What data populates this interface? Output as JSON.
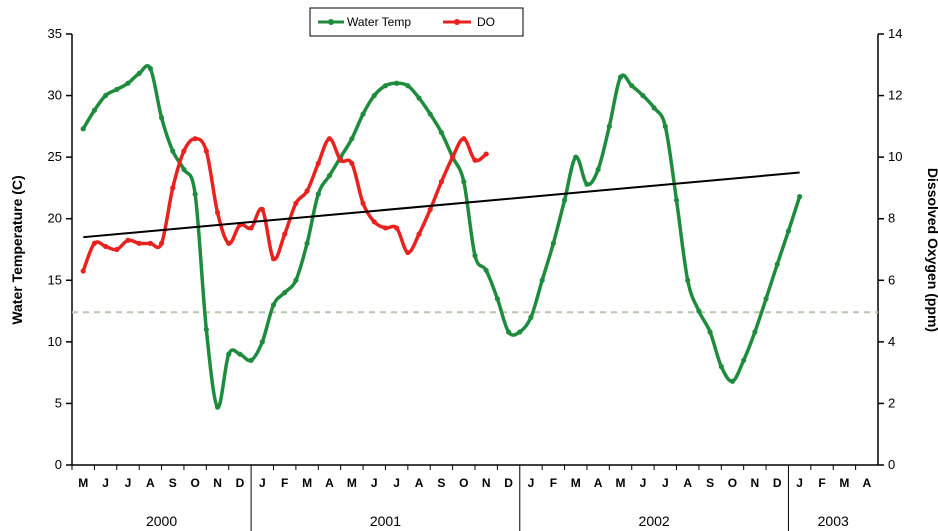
{
  "chart_data": {
    "type": "line",
    "xlabel_months": [
      "M",
      "J",
      "J",
      "A",
      "S",
      "O",
      "N",
      "D",
      "J",
      "F",
      "M",
      "A",
      "M",
      "J",
      "J",
      "A",
      "S",
      "O",
      "N",
      "D",
      "J",
      "F",
      "M",
      "A",
      "M",
      "J",
      "J",
      "A",
      "S",
      "O",
      "N",
      "D",
      "J",
      "F",
      "M",
      "A"
    ],
    "years": [
      "2000",
      "2001",
      "2002",
      "2003"
    ],
    "y_left_label": "Water Temperature (C)",
    "y_right_label": "Dissolved Oxygen (ppm)",
    "y_left_range": [
      0,
      35
    ],
    "y_right_range": [
      0,
      14
    ],
    "y_left_ticks": [
      "0",
      "5",
      "10",
      "15",
      "20",
      "25",
      "30",
      "35"
    ],
    "y_right_ticks": [
      "0",
      "2",
      "4",
      "6",
      "8",
      "10",
      "12",
      "14"
    ],
    "legend_position": "top-center",
    "series": [
      {
        "name": "Water Temp",
        "axis": "left",
        "color": "#1e8c3c",
        "points": [
          [
            0,
            27.3
          ],
          [
            0.5,
            28.8
          ],
          [
            1,
            30.0
          ],
          [
            1.5,
            30.5
          ],
          [
            2,
            31.0
          ],
          [
            2.5,
            31.8
          ],
          [
            3,
            32.2
          ],
          [
            3.5,
            28.2
          ],
          [
            4,
            25.5
          ],
          [
            4.5,
            24.0
          ],
          [
            5,
            22.0
          ],
          [
            5.5,
            11.0
          ],
          [
            6,
            4.7
          ],
          [
            6.5,
            9.0
          ],
          [
            7,
            9.0
          ],
          [
            7.5,
            8.5
          ],
          [
            8,
            10.0
          ],
          [
            8.5,
            13.0
          ],
          [
            9,
            14.0
          ],
          [
            9.5,
            15.0
          ],
          [
            10,
            18.0
          ],
          [
            10.5,
            22.0
          ],
          [
            11,
            23.5
          ],
          [
            11.5,
            25.0
          ],
          [
            12,
            26.5
          ],
          [
            12.5,
            28.5
          ],
          [
            13,
            30.0
          ],
          [
            13.5,
            30.8
          ],
          [
            14,
            31.0
          ],
          [
            14.5,
            30.8
          ],
          [
            15,
            29.8
          ],
          [
            15.5,
            28.5
          ],
          [
            16,
            27.0
          ],
          [
            16.5,
            25.0
          ],
          [
            17,
            23.0
          ],
          [
            17.5,
            17.0
          ],
          [
            18,
            15.8
          ],
          [
            18.5,
            13.5
          ],
          [
            19,
            10.8
          ],
          [
            19.5,
            10.8
          ],
          [
            20,
            12.0
          ],
          [
            20.5,
            15.0
          ],
          [
            21,
            18.0
          ],
          [
            21.5,
            21.5
          ],
          [
            22,
            25.0
          ],
          [
            22.5,
            22.8
          ],
          [
            23,
            24.0
          ],
          [
            23.5,
            27.5
          ],
          [
            24,
            31.5
          ],
          [
            24.5,
            30.8
          ],
          [
            25,
            30.0
          ],
          [
            25.5,
            29.0
          ],
          [
            26,
            27.5
          ],
          [
            26.5,
            21.5
          ],
          [
            27,
            15.0
          ],
          [
            27.5,
            12.5
          ],
          [
            28,
            10.8
          ],
          [
            28.5,
            8.0
          ],
          [
            29,
            6.8
          ],
          [
            29.5,
            8.5
          ],
          [
            30,
            10.8
          ],
          [
            30.5,
            13.5
          ],
          [
            31,
            16.3
          ],
          [
            31.5,
            19.0
          ],
          [
            32,
            21.8
          ]
        ]
      },
      {
        "name": "DO",
        "axis": "right",
        "color": "#e8221e",
        "points": [
          [
            0,
            6.3
          ],
          [
            0.5,
            7.2
          ],
          [
            1,
            7.1
          ],
          [
            1.5,
            7.0
          ],
          [
            2,
            7.3
          ],
          [
            2.5,
            7.2
          ],
          [
            3,
            7.2
          ],
          [
            3.5,
            7.2
          ],
          [
            4,
            9.0
          ],
          [
            4.5,
            10.2
          ],
          [
            5,
            10.6
          ],
          [
            5.5,
            10.2
          ],
          [
            6,
            8.2
          ],
          [
            6.5,
            7.2
          ],
          [
            7,
            7.8
          ],
          [
            7.5,
            7.7
          ],
          [
            8,
            8.3
          ],
          [
            8.5,
            6.7
          ],
          [
            9,
            7.5
          ],
          [
            9.5,
            8.5
          ],
          [
            10,
            8.9
          ],
          [
            10.5,
            9.8
          ],
          [
            11,
            10.6
          ],
          [
            11.5,
            9.9
          ],
          [
            12,
            9.8
          ],
          [
            12.5,
            8.5
          ],
          [
            13,
            7.9
          ],
          [
            13.5,
            7.7
          ],
          [
            14,
            7.7
          ],
          [
            14.5,
            6.9
          ],
          [
            15,
            7.5
          ],
          [
            15.5,
            8.3
          ],
          [
            16,
            9.2
          ],
          [
            16.5,
            10.0
          ],
          [
            17,
            10.6
          ],
          [
            17.5,
            9.9
          ],
          [
            18,
            10.1
          ]
        ]
      },
      {
        "name": "Trend",
        "axis": "right",
        "color": "#000000",
        "points": [
          [
            0,
            7.4
          ],
          [
            32,
            9.5
          ]
        ]
      }
    ],
    "reference_line": {
      "axis": "left",
      "value": 12.4,
      "style": "dashed"
    }
  }
}
